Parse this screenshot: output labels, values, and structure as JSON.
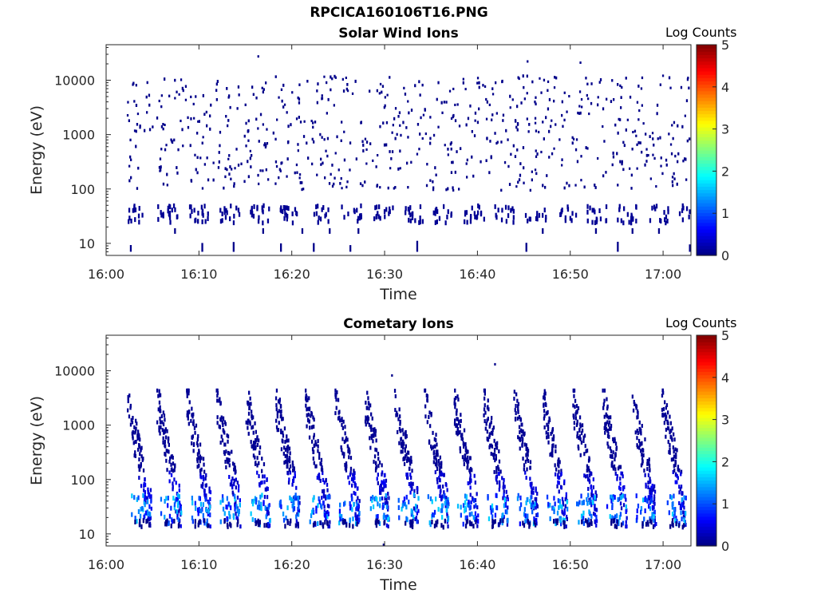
{
  "title": "RPCICA160106T16.PNG",
  "panels": [
    {
      "title": "Solar Wind Ions",
      "xlabel": "Time",
      "ylabel": "Energy (eV)",
      "colorbar_label": "Log Counts",
      "x_ticks": [
        "16:00",
        "16:10",
        "16:20",
        "16:30",
        "16:40",
        "16:50",
        "17:00"
      ],
      "y_ticks": [
        "10",
        "100",
        "1000",
        "10000"
      ],
      "c_ticks": [
        "0",
        "1",
        "2",
        "3",
        "4",
        "5"
      ]
    },
    {
      "title": "Cometary Ions",
      "xlabel": "Time",
      "ylabel": "Energy (eV)",
      "colorbar_label": "Log Counts",
      "x_ticks": [
        "16:00",
        "16:10",
        "16:20",
        "16:30",
        "16:40",
        "16:50",
        "17:00"
      ],
      "y_ticks": [
        "10",
        "100",
        "1000",
        "10000"
      ],
      "c_ticks": [
        "0",
        "1",
        "2",
        "3",
        "4",
        "5"
      ]
    }
  ],
  "chart_data": [
    {
      "type": "heatmap",
      "title": "Solar Wind Ions",
      "xlabel": "Time",
      "ylabel": "Energy (eV)",
      "colorbar_label": "Log Counts",
      "x_range": [
        "16:00",
        "17:03"
      ],
      "y_range": [
        6,
        45000
      ],
      "y_scale": "log",
      "c_range": [
        0,
        5
      ],
      "colormap": "jet",
      "description_values": {
        "sweep_period_min": 3.3,
        "first_sweep_start": "16:02",
        "low_energy_band_eV": [
          25,
          40
        ],
        "typical_log_counts": 0.1
      }
    },
    {
      "type": "heatmap",
      "title": "Cometary Ions",
      "xlabel": "Time",
      "ylabel": "Energy (eV)",
      "colorbar_label": "Log Counts",
      "x_range": [
        "16:00",
        "17:03"
      ],
      "y_range": [
        6,
        45000
      ],
      "y_scale": "log",
      "c_range": [
        0,
        5
      ],
      "colormap": "jet",
      "description_values": {
        "sweep_period_min": 3.2,
        "first_sweep_start": "16:02",
        "peak_energy_eV": 30,
        "peak_log_counts": 1.6
      }
    }
  ]
}
